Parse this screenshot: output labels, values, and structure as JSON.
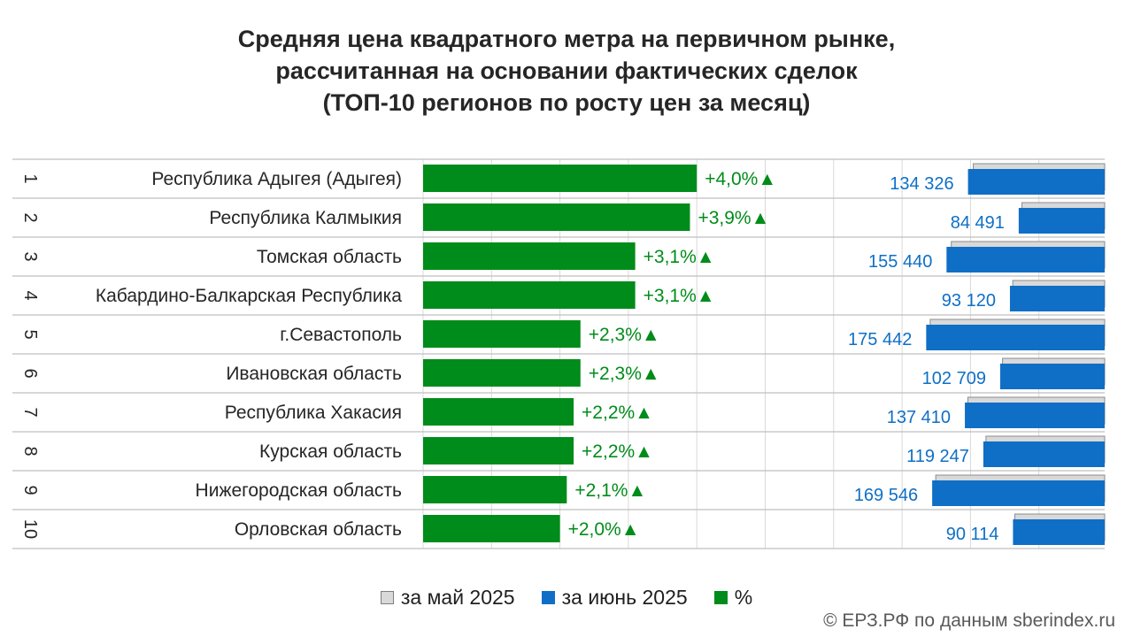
{
  "chart_data": {
    "type": "bar",
    "title": [
      "Средняя цена квадратного метра на первичном рынке,",
      "рассчитанная на основании фактических сделок",
      "(ТОП-10 регионов по росту цен за месяц)"
    ],
    "ranks": [
      "1",
      "2",
      "3",
      "4",
      "5",
      "6",
      "7",
      "8",
      "9",
      "10"
    ],
    "categories": [
      "Республика Адыгея (Адыгея)",
      "Республика Калмыкия",
      "Томская область",
      "Кабардино-Балкарская Республика",
      "г.Севастополь",
      "Ивановская область",
      "Республика Хакасия",
      "Курская область",
      "Нижегородская область",
      "Орловская область"
    ],
    "percent_series": {
      "name": "%",
      "values": [
        4.0,
        3.9,
        3.1,
        3.1,
        2.3,
        2.3,
        2.2,
        2.2,
        2.1,
        2.0
      ],
      "labels": [
        "+4,0%",
        "+3,9%",
        "+3,1%",
        "+3,1%",
        "+2,3%",
        "+2,3%",
        "+2,2%",
        "+2,2%",
        "+2,1%",
        "+2,0%"
      ],
      "arrow": "▲",
      "xlim": [
        0,
        10
      ],
      "color": "#008c1a"
    },
    "price_series": [
      {
        "name": "за май 2025",
        "values": [
          129150,
          81318,
          150760,
          90320,
          171500,
          100400,
          134450,
          116680,
          166060,
          88340
        ],
        "color": "#d9d9d9"
      },
      {
        "name": "за июнь 2025",
        "values": [
          134326,
          84491,
          155440,
          93120,
          175442,
          102709,
          137410,
          119247,
          169546,
          90114
        ],
        "labels": [
          "134 326",
          "84 491",
          "155 440",
          "93 120",
          "175 442",
          "102 709",
          "137 410",
          "119 247",
          "169 546",
          "90 114"
        ],
        "color": "#0f6fc6"
      }
    ],
    "price_xlim": [
      0,
      200000
    ],
    "price_axis": "reversed",
    "grid": true,
    "legend_position": "bottom"
  },
  "legend": {
    "may": "за май 2025",
    "june": "за июнь 2025",
    "percent": "%"
  },
  "source": "© ЕРЗ.РФ по данным sberindex.ru"
}
